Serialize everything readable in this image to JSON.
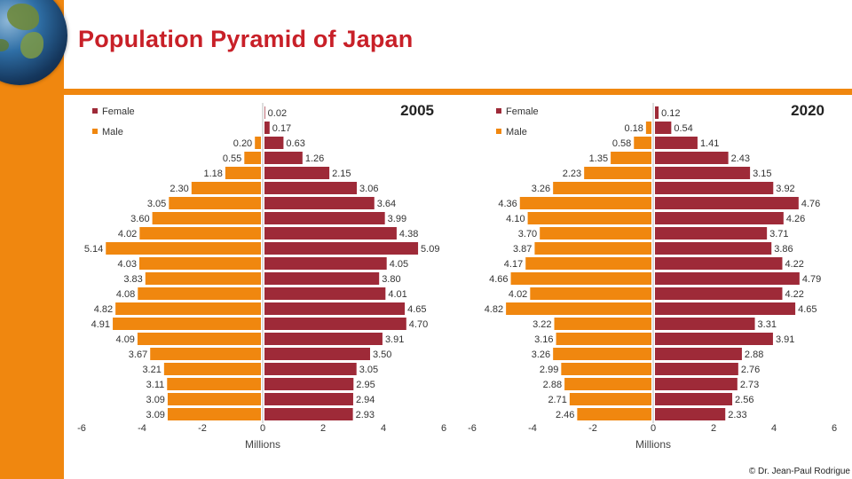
{
  "page": {
    "title": "Population Pyramid of Japan",
    "credit": "© Dr. Jean-Paul Rodrigue"
  },
  "colors": {
    "female": "#9e2a38",
    "male": "#f0870f",
    "accent": "#c82028"
  },
  "chart_data": [
    {
      "type": "bar",
      "title": "2005",
      "xlabel": "Millions",
      "xlim": [
        -6,
        6
      ],
      "xticks": [
        "-6",
        "-4",
        "-2",
        "0",
        "2",
        "4",
        "6"
      ],
      "legend": "top-left",
      "grid": false,
      "series": [
        {
          "name": "Female",
          "values": [
            0.02,
            0.17,
            0.63,
            1.26,
            2.15,
            3.06,
            3.64,
            3.99,
            4.38,
            5.09,
            4.05,
            3.8,
            4.01,
            4.65,
            4.7,
            3.91,
            3.5,
            3.05,
            2.95,
            2.94,
            2.93
          ]
        },
        {
          "name": "Male",
          "values": [
            -0.0,
            -0.0,
            -0.2,
            -0.55,
            -1.18,
            -2.3,
            -3.05,
            -3.6,
            -4.02,
            -5.14,
            -4.03,
            -3.83,
            -4.08,
            -4.82,
            -4.91,
            -4.09,
            -3.67,
            -3.21,
            -3.11,
            -3.09,
            -3.09
          ]
        }
      ],
      "labels": {
        "female": [
          "0.02",
          "0.17",
          "0.63",
          "1.26",
          "2.15",
          "3.06",
          "3.64",
          "3.99",
          "4.38",
          "5.09",
          "4.05",
          "3.80",
          "4.01",
          "4.65",
          "4.70",
          "3.91",
          "3.50",
          "3.05",
          "2.95",
          "2.94",
          "2.93"
        ],
        "male": [
          "",
          "",
          "0.20",
          "0.55",
          "1.18",
          "2.30",
          "3.05",
          "3.60",
          "4.02",
          "5.14",
          "4.03",
          "3.83",
          "4.08",
          "4.82",
          "4.91",
          "4.09",
          "3.67",
          "3.21",
          "3.11",
          "3.09",
          "3.09"
        ]
      }
    },
    {
      "type": "bar",
      "title": "2020",
      "xlabel": "Millions",
      "xlim": [
        -6,
        6
      ],
      "xticks": [
        "-6",
        "-4",
        "-2",
        "0",
        "2",
        "4",
        "6"
      ],
      "legend": "top-left",
      "grid": false,
      "series": [
        {
          "name": "Female",
          "values": [
            0.12,
            0.54,
            1.41,
            2.43,
            3.15,
            3.92,
            4.76,
            4.26,
            3.71,
            3.86,
            4.22,
            4.79,
            4.22,
            4.65,
            3.31,
            3.91,
            2.88,
            2.76,
            2.73,
            2.56,
            2.33
          ]
        },
        {
          "name": "Male",
          "values": [
            -0.0,
            -0.18,
            -0.58,
            -1.35,
            -2.23,
            -3.26,
            -4.36,
            -4.1,
            -3.7,
            -3.87,
            -4.17,
            -4.66,
            -4.02,
            -4.82,
            -3.22,
            -3.16,
            -3.26,
            -2.99,
            -2.88,
            -2.71,
            -2.46
          ]
        }
      ],
      "labels": {
        "female": [
          "0.12",
          "0.54",
          "1.41",
          "2.43",
          "3.15",
          "3.92",
          "4.76",
          "4.26",
          "3.71",
          "3.86",
          "4.22",
          "4.79",
          "4.22",
          "4.65",
          "3.31",
          "3.91",
          "2.88",
          "2.76",
          "2.73",
          "2.56",
          "2.33"
        ],
        "male": [
          "",
          "0.18",
          "0.58",
          "1.35",
          "2.23",
          "3.26",
          "4.36",
          "4.10",
          "3.70",
          "3.87",
          "4.17",
          "4.66",
          "4.02",
          "4.82",
          "3.22",
          "3.16",
          "3.26",
          "2.99",
          "2.88",
          "2.71",
          "2.46"
        ]
      }
    }
  ]
}
